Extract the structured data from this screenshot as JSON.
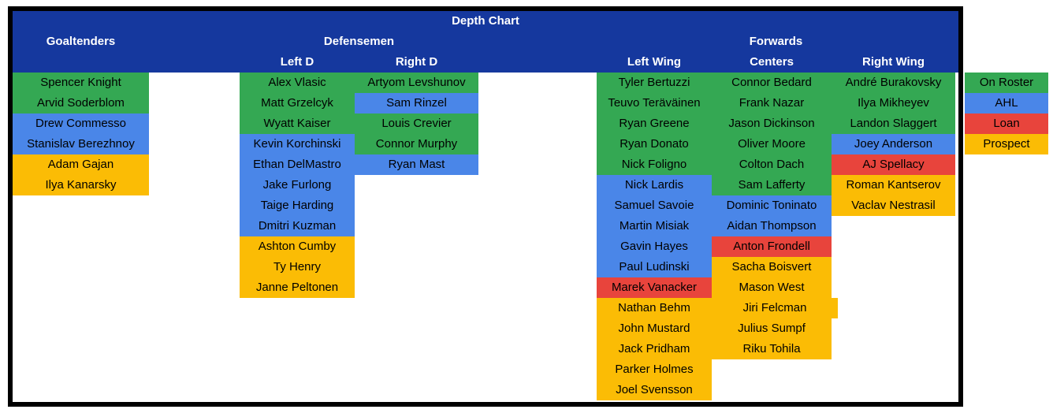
{
  "title": "Depth Chart",
  "colors": {
    "header_bg": "#15389E",
    "header_text": "#FFFFFF",
    "cell_text": "#000000",
    "border": "#000000",
    "background": "#FFFFFF",
    "status": {
      "on_roster": "#34A853",
      "ahl": "#4A86E8",
      "loan": "#E8443C",
      "prospect": "#FBBC05"
    }
  },
  "legend": [
    {
      "label": "On Roster",
      "status": "on_roster"
    },
    {
      "label": "AHL",
      "status": "ahl"
    },
    {
      "label": "Loan",
      "status": "loan"
    },
    {
      "label": "Prospect",
      "status": "prospect"
    }
  ],
  "groups": [
    {
      "label": "Goaltenders",
      "columns": [
        {
          "label": "",
          "players": [
            {
              "name": "Spencer Knight",
              "status": "on_roster"
            },
            {
              "name": "Arvid Soderblom",
              "status": "on_roster"
            },
            {
              "name": "Drew Commesso",
              "status": "ahl"
            },
            {
              "name": "Stanislav Berezhnoy",
              "status": "ahl"
            },
            {
              "name": "Adam Gajan",
              "status": "prospect"
            },
            {
              "name": "Ilya Kanarsky",
              "status": "prospect"
            }
          ]
        }
      ]
    },
    {
      "label": "Defensemen",
      "columns": [
        {
          "label": "Left D",
          "players": [
            {
              "name": "Alex Vlasic",
              "status": "on_roster"
            },
            {
              "name": "Matt Grzelcyk",
              "status": "on_roster"
            },
            {
              "name": "Wyatt Kaiser",
              "status": "on_roster"
            },
            {
              "name": "Kevin Korchinski",
              "status": "ahl"
            },
            {
              "name": "Ethan DelMastro",
              "status": "ahl"
            },
            {
              "name": "Jake Furlong",
              "status": "ahl"
            },
            {
              "name": "Taige Harding",
              "status": "ahl"
            },
            {
              "name": "Dmitri Kuzman",
              "status": "ahl"
            },
            {
              "name": "Ashton Cumby",
              "status": "prospect"
            },
            {
              "name": "Ty Henry",
              "status": "prospect"
            },
            {
              "name": "Janne Peltonen",
              "status": "prospect"
            }
          ]
        },
        {
          "label": "Right D",
          "players": [
            {
              "name": "Artyom Levshunov",
              "status": "on_roster"
            },
            {
              "name": "Sam Rinzel",
              "status": "ahl"
            },
            {
              "name": "Louis Crevier",
              "status": "on_roster"
            },
            {
              "name": "Connor Murphy",
              "status": "on_roster"
            },
            {
              "name": "Ryan Mast",
              "status": "ahl"
            }
          ]
        }
      ]
    },
    {
      "label": "Forwards",
      "columns": [
        {
          "label": "Left Wing",
          "players": [
            {
              "name": "Tyler Bertuzzi",
              "status": "on_roster"
            },
            {
              "name": "Teuvo Teräväinen",
              "status": "on_roster"
            },
            {
              "name": "Ryan Greene",
              "status": "on_roster"
            },
            {
              "name": "Ryan Donato",
              "status": "on_roster"
            },
            {
              "name": "Nick Foligno",
              "status": "on_roster"
            },
            {
              "name": "Nick Lardis",
              "status": "ahl"
            },
            {
              "name": "Samuel Savoie",
              "status": "ahl"
            },
            {
              "name": "Martin Misiak",
              "status": "ahl"
            },
            {
              "name": "Gavin Hayes",
              "status": "ahl"
            },
            {
              "name": "Paul Ludinski",
              "status": "ahl"
            },
            {
              "name": "Marek Vanacker",
              "status": "loan"
            },
            {
              "name": "Nathan Behm",
              "status": "prospect"
            },
            {
              "name": "John Mustard",
              "status": "prospect"
            },
            {
              "name": "Jack Pridham",
              "status": "prospect"
            },
            {
              "name": "Parker Holmes",
              "status": "prospect"
            },
            {
              "name": "Joel Svensson",
              "status": "prospect"
            }
          ]
        },
        {
          "label": "Centers",
          "players": [
            {
              "name": "Connor Bedard",
              "status": "on_roster"
            },
            {
              "name": "Frank Nazar",
              "status": "on_roster"
            },
            {
              "name": "Jason Dickinson",
              "status": "on_roster"
            },
            {
              "name": "Oliver Moore",
              "status": "on_roster"
            },
            {
              "name": "Colton Dach",
              "status": "on_roster"
            },
            {
              "name": "Sam Lafferty",
              "status": "on_roster"
            },
            {
              "name": "Dominic Toninato",
              "status": "ahl"
            },
            {
              "name": "Aidan Thompson",
              "status": "ahl"
            },
            {
              "name": "Anton Frondell",
              "status": "loan"
            },
            {
              "name": "Sacha Boisvert",
              "status": "prospect"
            },
            {
              "name": "Mason West",
              "status": "prospect"
            },
            {
              "name": "Jiri Felcman",
              "status": "prospect",
              "wide": true
            },
            {
              "name": "Julius Sumpf",
              "status": "prospect"
            },
            {
              "name": "Riku Tohila",
              "status": "prospect"
            }
          ]
        },
        {
          "label": "Right Wing",
          "players": [
            {
              "name": "André Burakovsky",
              "status": "on_roster"
            },
            {
              "name": "Ilya Mikheyev",
              "status": "on_roster"
            },
            {
              "name": "Landon Slaggert",
              "status": "on_roster"
            },
            {
              "name": "Joey Anderson",
              "status": "ahl"
            },
            {
              "name": "AJ Spellacy",
              "status": "loan"
            },
            {
              "name": "Roman Kantserov",
              "status": "prospect"
            },
            {
              "name": "Vaclav Nestrasil",
              "status": "prospect"
            }
          ]
        }
      ]
    }
  ]
}
